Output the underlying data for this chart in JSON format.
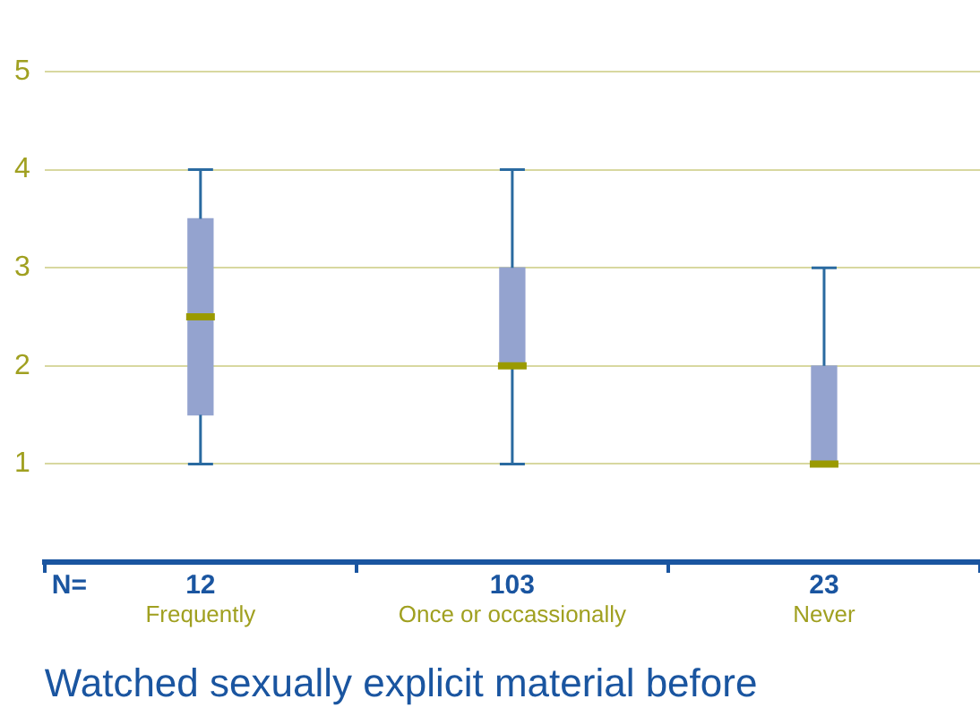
{
  "chart_data": {
    "type": "box",
    "xlabel": "Watched sexually explicit material before",
    "categories": [
      "Frequently",
      "Once or occassionally",
      "Never"
    ],
    "boxes": [
      {
        "low": 1,
        "q1": 1.5,
        "median": 2.5,
        "q3": 3.5,
        "high": 4
      },
      {
        "low": 1,
        "q1": 2,
        "median": 2,
        "q3": 3,
        "high": 4
      },
      {
        "low": 1,
        "q1": 1,
        "median": 1,
        "q3": 2,
        "high": 3
      }
    ],
    "color": "#94a3cf",
    "ylim": [
      0,
      5
    ],
    "yticks": [
      1,
      2,
      3,
      4,
      5
    ],
    "grid": "y",
    "legend": false,
    "annotations": [
      "N=",
      "12",
      "103",
      "23"
    ]
  }
}
